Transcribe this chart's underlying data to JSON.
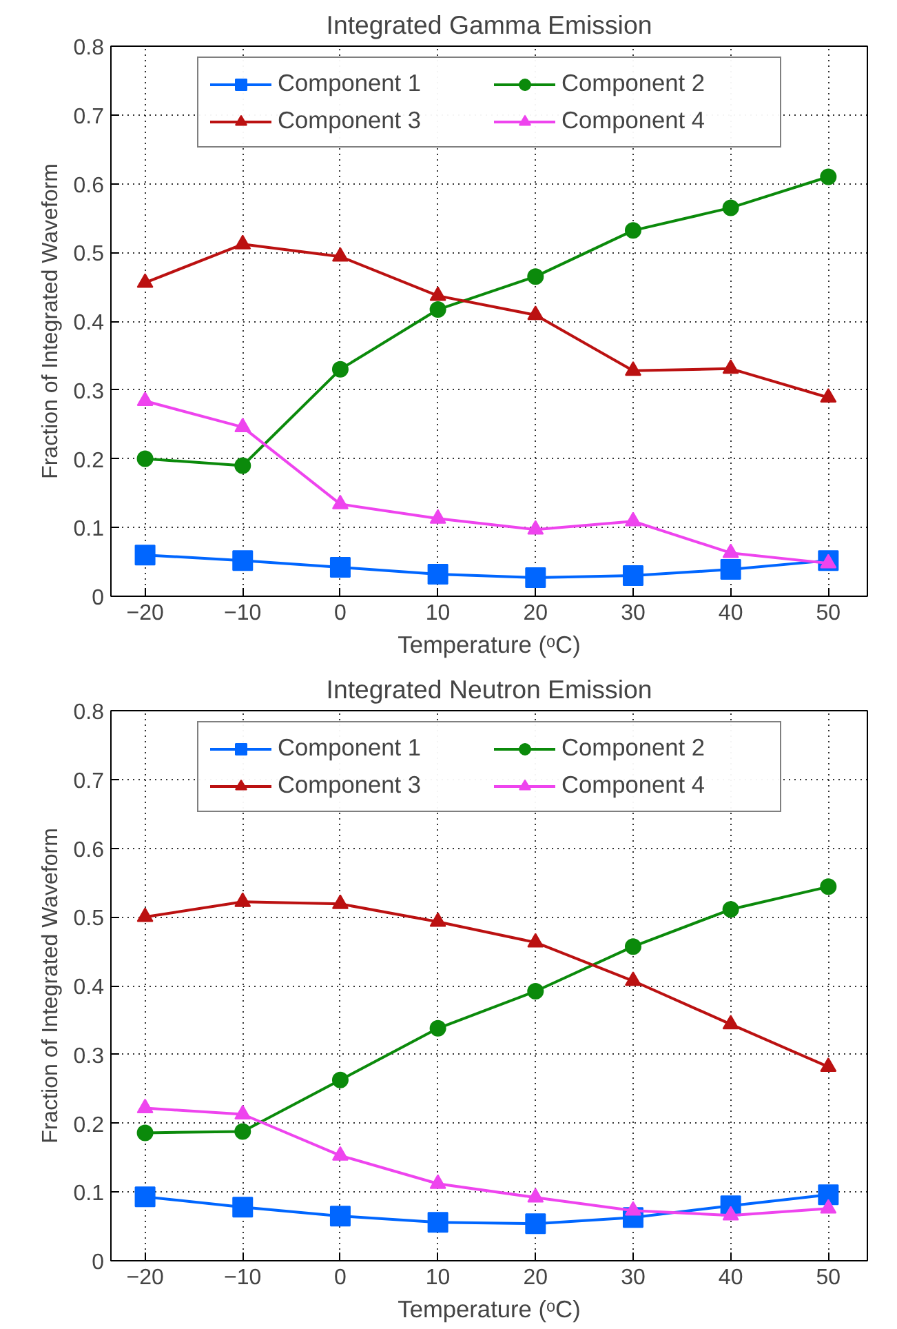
{
  "chart_data": [
    {
      "type": "line",
      "title": "Integrated Gamma Emission",
      "xlabel": "Temperature (ᵒC)",
      "ylabel": "Fraction of Integrated Waveform",
      "x": [
        -20,
        -10,
        0,
        10,
        20,
        30,
        40,
        50
      ],
      "xlim": [
        -23.5,
        54
      ],
      "xticks": [
        -20,
        -10,
        0,
        10,
        20,
        30,
        40,
        50
      ],
      "ylim": [
        0,
        0.8
      ],
      "yticks": [
        0,
        0.1,
        0.2,
        0.3,
        0.4,
        0.5,
        0.6,
        0.7,
        0.8
      ],
      "grid": true,
      "legend": "top",
      "line_style": "solid",
      "series": [
        {
          "name": "Component 1",
          "color": "#0066ff",
          "marker": "square",
          "values": [
            0.06,
            0.052,
            0.042,
            0.032,
            0.027,
            0.03,
            0.039,
            0.052
          ]
        },
        {
          "name": "Component 2",
          "color": "#0b8a0b",
          "marker": "circle",
          "values": [
            0.2,
            0.19,
            0.33,
            0.417,
            0.465,
            0.532,
            0.565,
            0.61
          ]
        },
        {
          "name": "Component 3",
          "color": "#bb1111",
          "marker": "triangle",
          "values": [
            0.456,
            0.512,
            0.494,
            0.437,
            0.409,
            0.328,
            0.331,
            0.289
          ]
        },
        {
          "name": "Component 4",
          "color": "#ee44ee",
          "marker": "triangle",
          "values": [
            0.284,
            0.246,
            0.134,
            0.113,
            0.097,
            0.109,
            0.063,
            0.048
          ]
        }
      ]
    },
    {
      "type": "line",
      "title": "Integrated Neutron Emission",
      "xlabel": "Temperature (ᵒC)",
      "ylabel": "Fraction of Integrated Waveform",
      "x": [
        -20,
        -10,
        0,
        10,
        20,
        30,
        40,
        50
      ],
      "xlim": [
        -23.5,
        54
      ],
      "xticks": [
        -20,
        -10,
        0,
        10,
        20,
        30,
        40,
        50
      ],
      "ylim": [
        0,
        0.8
      ],
      "yticks": [
        0,
        0.1,
        0.2,
        0.3,
        0.4,
        0.5,
        0.6,
        0.7,
        0.8
      ],
      "grid": true,
      "legend": "top",
      "line_style": "solid",
      "series": [
        {
          "name": "Component 1",
          "color": "#0066ff",
          "marker": "square",
          "values": [
            0.093,
            0.078,
            0.065,
            0.056,
            0.054,
            0.063,
            0.08,
            0.096
          ]
        },
        {
          "name": "Component 2",
          "color": "#0b8a0b",
          "marker": "circle",
          "values": [
            0.186,
            0.188,
            0.263,
            0.338,
            0.392,
            0.457,
            0.511,
            0.544
          ]
        },
        {
          "name": "Component 3",
          "color": "#bb1111",
          "marker": "triangle",
          "values": [
            0.5,
            0.522,
            0.519,
            0.493,
            0.463,
            0.407,
            0.344,
            0.282
          ]
        },
        {
          "name": "Component 4",
          "color": "#ee44ee",
          "marker": "triangle",
          "values": [
            0.222,
            0.213,
            0.153,
            0.112,
            0.092,
            0.073,
            0.066,
            0.076
          ]
        }
      ]
    }
  ]
}
